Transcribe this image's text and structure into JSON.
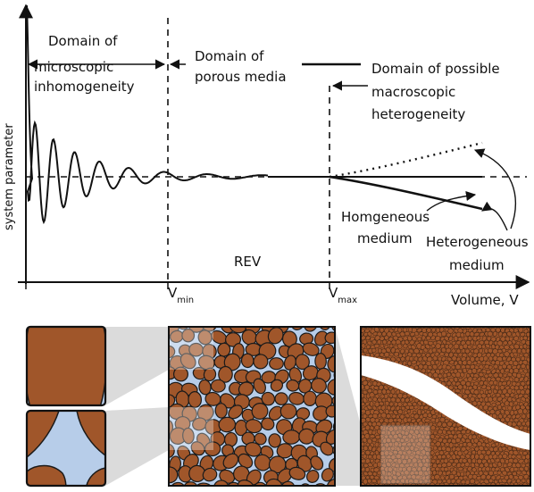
{
  "diagram": {
    "y_axis_label": "system parameter",
    "x_axis_label": "Volume, V",
    "v_min": {
      "base": "V",
      "sub": "min"
    },
    "v_max": {
      "base": "V",
      "sub": "max"
    },
    "domain_micro": [
      "Domain of",
      "microscopic",
      "inhomogeneity"
    ],
    "domain_porous": [
      "Domain of",
      "porous media"
    ],
    "domain_macro": [
      "Domain of possible",
      "macroscopic",
      "heterogeneity"
    ],
    "rev_label": "REV",
    "homogeneous_label": [
      "Homgeneous",
      "medium"
    ],
    "heterogeneous_label": [
      "Heterogeneous",
      "medium"
    ]
  },
  "colors": {
    "grain": "#a0562a",
    "grain_outline": "#1a1a1a",
    "pore": "#b7cde9",
    "connector": "#bdbdbd",
    "crack": "#ffffff"
  },
  "panels": [
    {
      "name": "zoom-grain-tile",
      "content": "single grain"
    },
    {
      "name": "zoom-pore-tile",
      "content": "single pore"
    },
    {
      "name": "rev-sample-panel",
      "content": "porous medium at REV scale"
    },
    {
      "name": "macro-sample-panel",
      "content": "heterogeneous medium with fracture"
    }
  ]
}
